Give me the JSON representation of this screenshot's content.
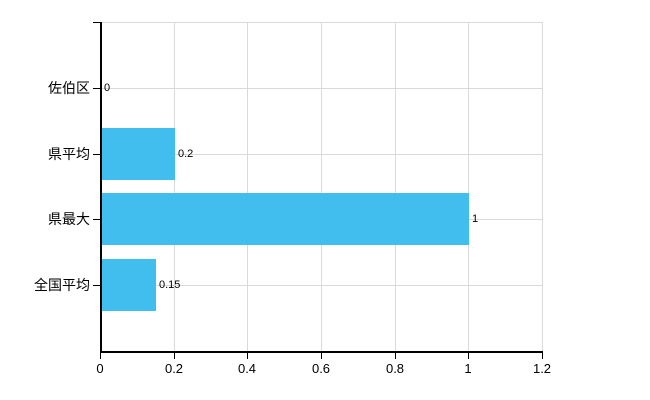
{
  "chart_data": {
    "type": "bar",
    "orientation": "horizontal",
    "title": "",
    "categories": [
      "佐伯区",
      "県平均",
      "県最大",
      "全国平均"
    ],
    "values": [
      0,
      0.2,
      1,
      0.15
    ],
    "value_labels": [
      "0",
      "0.2",
      "1",
      "0.15"
    ],
    "x_ticks": [
      0,
      0.2,
      0.4,
      0.6,
      0.8,
      1,
      1.2
    ],
    "x_tick_labels": [
      "0",
      "0.2",
      "0.4",
      "0.6",
      "0.8",
      "1",
      "1.2"
    ],
    "xlim": [
      0,
      1.2
    ],
    "xlabel": "",
    "ylabel": "",
    "grid": true,
    "legend": false,
    "colors": {
      "bar": "#41beee",
      "grid": "#d9d9d9",
      "axis": "#000000",
      "text": "#000000",
      "background": "#ffffff"
    }
  }
}
